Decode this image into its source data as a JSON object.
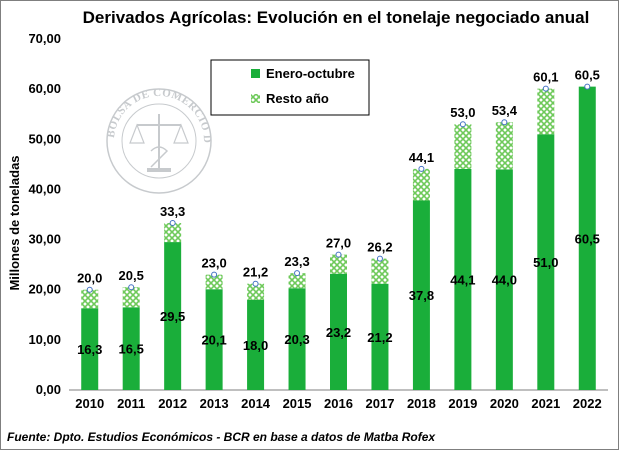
{
  "chart_data": {
    "type": "bar",
    "stacked": true,
    "title": "Derivados Agrícolas: Evolución en el tonelaje negociado anual",
    "ylabel": "Millones de toneladas",
    "xlabel": "",
    "ylim": [
      0,
      70
    ],
    "yticks": [
      "0,00",
      "10,00",
      "20,00",
      "30,00",
      "40,00",
      "50,00",
      "60,00",
      "70,00"
    ],
    "categories": [
      "2010",
      "2011",
      "2012",
      "2013",
      "2014",
      "2015",
      "2016",
      "2017",
      "2018",
      "2019",
      "2020",
      "2021",
      "2022"
    ],
    "series": [
      {
        "name": "Enero-octubre",
        "color": "#1aae3a",
        "values": [
          16.3,
          16.5,
          29.5,
          20.1,
          18.0,
          20.3,
          23.2,
          21.2,
          37.8,
          44.1,
          44.0,
          51.0,
          60.5
        ],
        "labels": [
          "16,3",
          "16,5",
          "29,5",
          "20,1",
          "18,0",
          "20,3",
          "23,2",
          "21,2",
          "37,8",
          "44,1",
          "44,0",
          "51,0",
          "60,5"
        ]
      },
      {
        "name": "Resto año",
        "color": "#8fd67f",
        "values": [
          3.7,
          4.0,
          3.8,
          2.9,
          3.2,
          3.0,
          3.8,
          5.0,
          6.3,
          8.9,
          9.4,
          9.1,
          0.0
        ]
      }
    ],
    "totals": [
      20.0,
      20.5,
      33.3,
      23.0,
      21.2,
      23.3,
      27.0,
      26.2,
      44.1,
      53.0,
      53.4,
      60.1,
      60.5
    ],
    "total_labels": [
      "20,0",
      "20,5",
      "33,3",
      "23,0",
      "21,2",
      "23,3",
      "27,0",
      "26,2",
      "44,1",
      "53,0",
      "53,4",
      "60,1",
      "60,5"
    ],
    "legend_position": "top-center",
    "grid": false,
    "watermark": "BOLSA DE COMERCIO DE ROSARIO"
  },
  "source": "Fuente: Dpto. Estudios Económicos - BCR en base a datos de Matba Rofex"
}
